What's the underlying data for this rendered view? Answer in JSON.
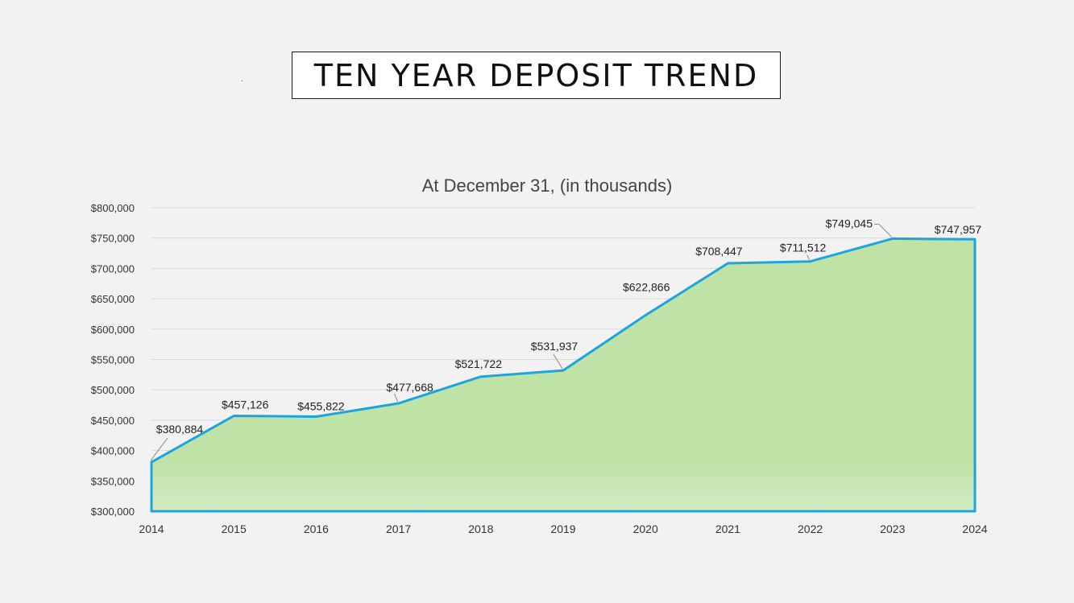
{
  "slide_title": "TEN YEAR DEPOSIT TREND",
  "chart_data": {
    "type": "area",
    "title": "At December 31, (in thousands)",
    "xlabel": "",
    "ylabel": "",
    "categories": [
      "2014",
      "2015",
      "2016",
      "2017",
      "2018",
      "2019",
      "2020",
      "2021",
      "2022",
      "2023",
      "2024"
    ],
    "values": [
      380884,
      457126,
      455822,
      477668,
      521722,
      531937,
      622866,
      708447,
      711512,
      749045,
      747957
    ],
    "data_labels": [
      "$380,884",
      "$457,126",
      "$455,822",
      "$477,668",
      "$521,722",
      "$531,937",
      "$622,866",
      "$708,447",
      "$711,512",
      "$749,045",
      "$747,957"
    ],
    "y_ticks": [
      300000,
      350000,
      400000,
      450000,
      500000,
      550000,
      600000,
      650000,
      700000,
      750000,
      800000
    ],
    "y_tick_labels": [
      "$300,000",
      "$350,000",
      "$400,000",
      "$450,000",
      "$500,000",
      "$550,000",
      "$600,000",
      "$650,000",
      "$700,000",
      "$750,000",
      "$800,000"
    ],
    "ylim": [
      300000,
      800000
    ],
    "grid": true,
    "legend": "none",
    "colors": {
      "line": "#1fa3dc",
      "fill_top": "#bfe2a6",
      "fill_bottom": "#d3ebc4",
      "grid": "#d9d9d9"
    }
  }
}
